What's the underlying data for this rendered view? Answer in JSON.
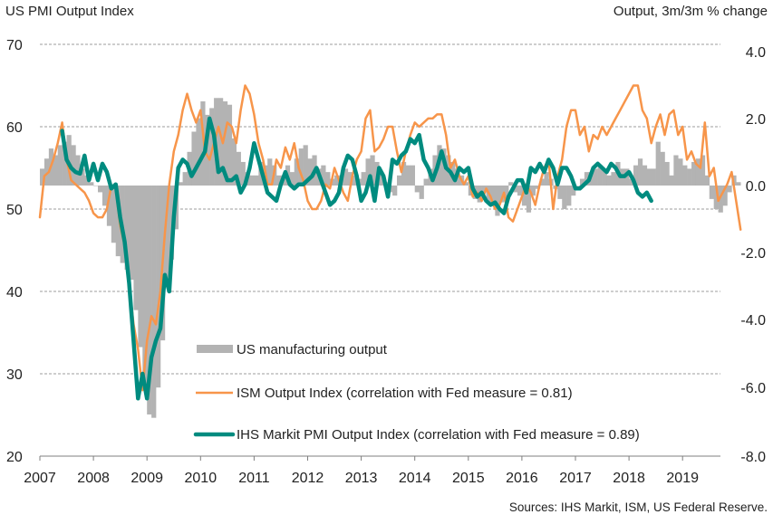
{
  "chart_data": {
    "type": "line",
    "title": "US PMI Output Index",
    "ylabel_left": "US PMI Output Index",
    "ylabel_right": "Output, 3m/3m % change",
    "source": "Sources: IHS Markit, ISM, US Federal Reserve.",
    "x_start": "2007-01",
    "frequency": "monthly",
    "xticks": [
      "2007",
      "2008",
      "2009",
      "2010",
      "2011",
      "2012",
      "2013",
      "2014",
      "2015",
      "2016",
      "2017",
      "2018",
      "2019"
    ],
    "ylim_left": [
      20,
      70
    ],
    "yticks_left": [
      "70",
      "60",
      "50",
      "40",
      "30",
      "20"
    ],
    "ylim_right": [
      -8.0,
      4.0
    ],
    "yticks_right": [
      "4.0",
      "2.0",
      "0.0",
      "-2.0",
      "-4.0",
      "-6.0",
      "-8.0"
    ],
    "grid": true,
    "legend_position": "bottom-center",
    "colors": {
      "bars": "#b3b3b3",
      "ism": "#f7954a",
      "pmi": "#008b7f",
      "grid": "#7f7f7f"
    },
    "series": [
      {
        "name": "US manufacturing output",
        "type": "bar",
        "axis": "right",
        "values": [
          0.5,
          0.8,
          1.1,
          0.9,
          1.2,
          1.3,
          1.5,
          1.2,
          0.9,
          0.5,
          0.3,
          0.1,
          0.0,
          -0.2,
          -0.6,
          -1.2,
          -1.7,
          -2.1,
          -2.3,
          -2.5,
          -2.8,
          -3.7,
          -4.8,
          -5.9,
          -6.8,
          -6.9,
          -6.0,
          -4.6,
          -3.0,
          -2.2,
          -1.3,
          0.1,
          0.4,
          1.0,
          1.6,
          2.0,
          2.5,
          2.1,
          2.3,
          2.6,
          2.6,
          2.5,
          2.4,
          1.4,
          1.0,
          0.7,
          0.4,
          0.3,
          0.3,
          0.7,
          0.6,
          0.8,
          0.6,
          0.3,
          0.3,
          0.6,
          0.4,
          0.8,
          1.1,
          1.2,
          0.8,
          0.9,
          0.5,
          0.6,
          0.4,
          0.2,
          0.3,
          0.3,
          0.5,
          0.4,
          0.3,
          0.2,
          0.4,
          0.8,
          0.9,
          0.7,
          0.4,
          0.1,
          -0.2,
          -0.3,
          0.3,
          0.7,
          0.6,
          0.6,
          -0.2,
          -0.4,
          0.2,
          0.5,
          0.9,
          1.2,
          1.1,
          0.9,
          0.7,
          0.5,
          0.3,
          0.1,
          -0.3,
          -0.4,
          -0.5,
          -0.2,
          -0.5,
          -0.6,
          -0.9,
          -0.5,
          -0.4,
          0.1,
          -0.2,
          -0.3,
          -0.6,
          -0.8,
          -0.3,
          -0.1,
          0.2,
          0.4,
          0.2,
          -0.1,
          -0.4,
          -0.7,
          -0.6,
          -0.3,
          0.0,
          0.2,
          0.4,
          0.4,
          0.5,
          0.6,
          0.5,
          0.3,
          0.4,
          0.7,
          0.5,
          0.5,
          0.2,
          0.6,
          0.8,
          0.6,
          0.5,
          0.5,
          1.3,
          1.0,
          0.7,
          0.3,
          0.9,
          0.8,
          0.6,
          0.5,
          0.7,
          0.8,
          0.9,
          0.3,
          -0.4,
          -0.7,
          -0.8,
          -0.6,
          -0.2,
          0.3,
          0.1
        ]
      },
      {
        "name": "ISM Output Index (correlation with Fed measure = 0.81)",
        "type": "line",
        "axis": "left",
        "values": [
          49,
          54,
          54.5,
          56,
          58,
          60.5,
          56,
          53.5,
          53,
          52.5,
          52,
          51,
          49.5,
          49,
          49,
          50,
          52.8,
          52.5,
          48,
          45.5,
          41,
          36,
          33,
          28,
          34,
          37,
          36,
          40,
          47,
          53,
          57,
          59,
          62,
          64,
          62,
          60.5,
          62,
          57,
          56,
          58,
          60,
          58,
          60.5,
          60,
          58,
          62,
          65,
          64,
          61.5,
          58,
          56,
          53,
          53,
          56,
          55,
          57.5,
          56,
          58,
          55,
          53.5,
          51,
          50,
          50,
          51,
          53,
          52.5,
          55,
          53.5,
          52,
          51,
          54,
          56,
          57,
          61,
          62,
          57,
          57.5,
          58.5,
          60,
          60,
          57,
          54.5,
          57,
          59,
          60.5,
          60,
          60.5,
          61,
          61,
          61.5,
          61.5,
          59,
          55,
          56,
          54,
          53,
          54,
          51.5,
          52,
          51,
          52.5,
          51.5,
          50,
          50.5,
          52,
          49,
          48.5,
          50,
          51.5,
          53,
          52,
          50.5,
          53,
          55,
          56,
          50,
          54,
          56,
          60,
          62,
          62,
          59,
          60,
          57,
          59,
          58.5,
          60,
          59,
          60,
          61,
          62,
          63,
          64,
          65,
          65,
          62,
          61,
          58,
          60,
          61.5,
          59,
          61.5,
          62,
          59,
          60,
          56,
          57,
          55.5,
          55,
          60.5,
          54,
          55,
          51,
          52,
          53,
          54.5,
          51,
          47.5
        ]
      },
      {
        "name": "IHS Markit PMI Output Index (correlation with Fed measure = 0.89)",
        "type": "line",
        "axis": "left",
        "start_index": 5,
        "values": [
          59.5,
          56,
          55,
          54.5,
          54.3,
          56.5,
          53.5,
          55.5,
          53.5,
          55.5,
          54.5,
          52.5,
          53,
          49,
          46,
          41,
          34,
          27,
          30,
          27,
          32,
          34,
          35.5,
          42,
          40,
          49,
          55,
          56,
          55.5,
          54,
          55,
          56,
          57,
          61,
          59,
          54.5,
          55,
          53.5,
          53.5,
          54,
          52,
          53,
          55,
          58,
          56,
          54,
          52,
          51.5,
          51,
          53,
          54.5,
          53,
          52.5,
          53,
          53,
          53.5,
          54,
          55,
          53.5,
          52,
          50.5,
          51,
          52,
          55,
          56.5,
          56,
          54,
          51,
          52,
          54,
          51,
          55,
          54,
          51.5,
          56,
          55.5,
          56.5,
          57,
          58.5,
          58,
          59,
          56,
          55,
          53.5,
          55,
          57,
          55,
          54.5,
          53.5,
          55,
          54.5,
          55,
          52.5,
          51.5,
          52,
          51,
          50.5,
          50.8,
          50,
          49.5,
          51.5,
          52.5,
          53.5,
          53.5,
          52,
          55,
          54.5,
          55.5,
          54.5,
          56,
          55,
          53,
          55,
          55,
          54,
          52.5,
          52.5,
          53,
          53.5,
          55,
          55.5,
          55,
          54.5,
          55.5,
          55,
          54,
          54,
          54.5,
          53.5,
          52,
          51.5,
          52,
          51
        ]
      }
    ]
  },
  "legend": {
    "bars_label": "US manufacturing output",
    "ism_label": "ISM Output Index (correlation with Fed measure = 0.81)",
    "pmi_label": "IHS Markit PMI Output Index (correlation with Fed measure = 0.89)"
  }
}
